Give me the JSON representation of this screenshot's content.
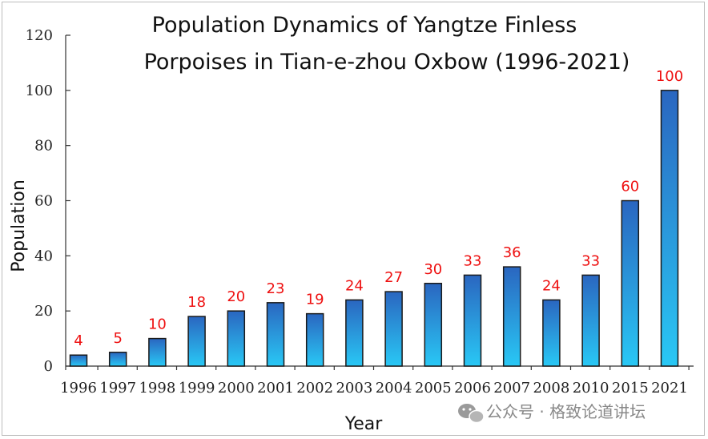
{
  "chart_data": {
    "type": "bar",
    "title_lines": [
      "Population Dynamics of Yangtze Finless",
      "Porpoises in Tian-e-zhou Oxbow (1996-2021)"
    ],
    "xlabel": "Year",
    "ylabel": "Population",
    "ylim": [
      0,
      120
    ],
    "yticks": [
      0,
      20,
      40,
      60,
      80,
      100,
      120
    ],
    "categories": [
      "1996",
      "1997",
      "1998",
      "1999",
      "2000",
      "2001",
      "2002",
      "2003",
      "2004",
      "2005",
      "2006",
      "2007",
      "2008",
      "2010",
      "2015",
      "2021"
    ],
    "values": [
      4,
      5,
      10,
      18,
      20,
      23,
      19,
      24,
      27,
      30,
      33,
      36,
      24,
      33,
      60,
      100
    ],
    "data_labels": true,
    "grid": false,
    "bar_gradient": [
      "#2a66c0",
      "#29c8f5"
    ],
    "data_label_color": "#ee1111"
  },
  "watermark": {
    "icon": "wechat-icon",
    "text": "公众号 · 格致论道讲坛"
  }
}
